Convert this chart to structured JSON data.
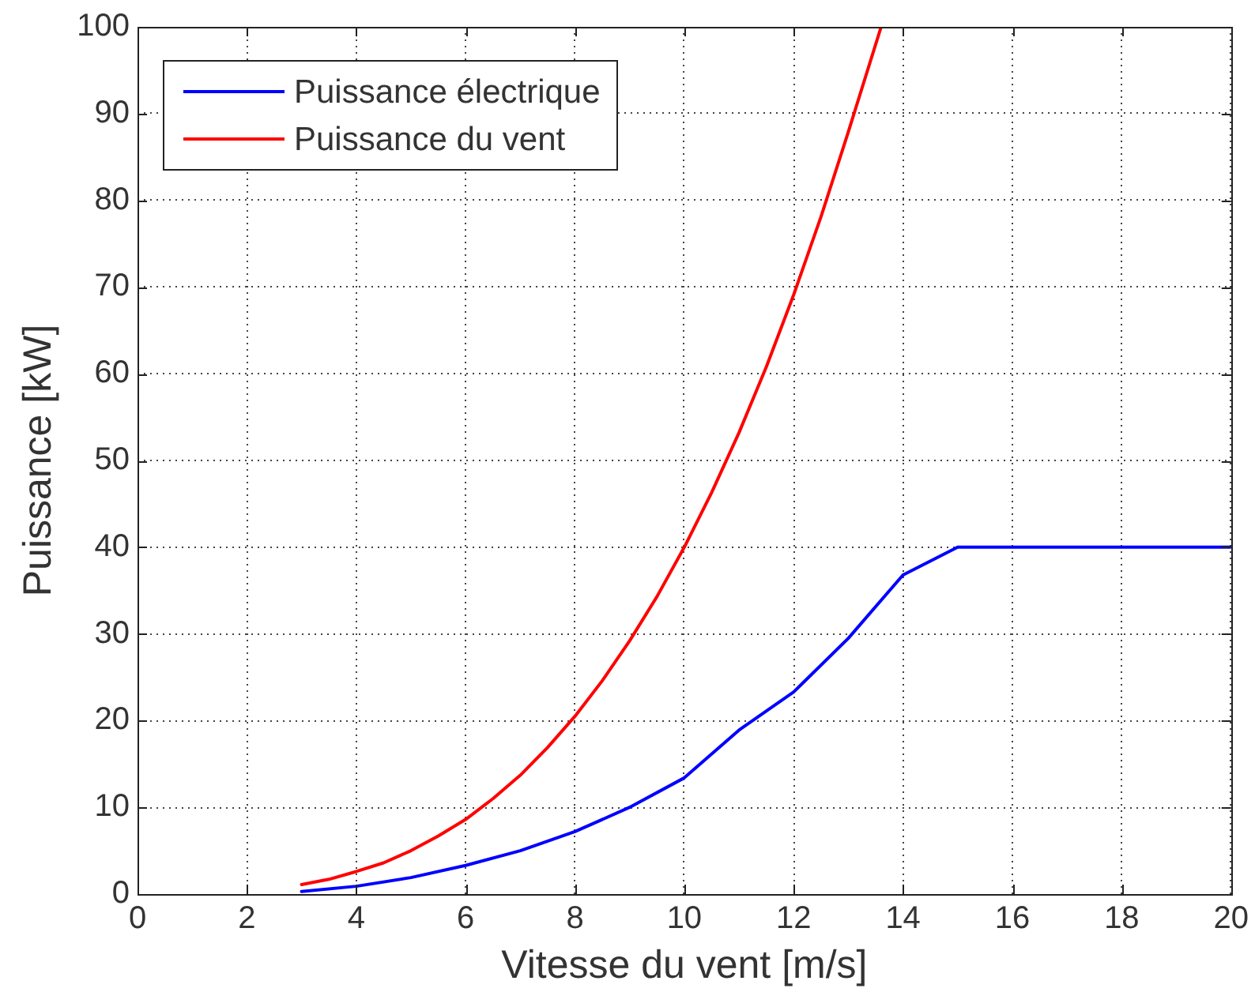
{
  "chart_data": {
    "type": "line",
    "xlabel": "Vitesse du vent [m/s]",
    "ylabel": "Puissance [kW]",
    "xlim": [
      0,
      20
    ],
    "ylim": [
      0,
      100
    ],
    "xticks": [
      0,
      2,
      4,
      6,
      8,
      10,
      12,
      14,
      16,
      18,
      20
    ],
    "yticks": [
      0,
      10,
      20,
      30,
      40,
      50,
      60,
      70,
      80,
      90,
      100
    ],
    "grid": true,
    "legend": "top left",
    "marker": "none",
    "line_style": "solid",
    "series": [
      {
        "name": "Puissance électrique",
        "color": "#0000ff",
        "x": [
          3,
          4,
          5,
          6,
          7,
          8,
          9,
          10,
          11,
          12,
          13,
          14,
          15,
          16,
          17,
          18,
          19,
          20
        ],
        "values": [
          0.3,
          0.9,
          1.9,
          3.3,
          5,
          7.2,
          10,
          13.4,
          18.9,
          23.3,
          29.5,
          36.8,
          40,
          40,
          40,
          40,
          40,
          40
        ]
      },
      {
        "name": "Puissance du vent",
        "color": "#ff0000",
        "x": [
          3,
          3.5,
          4,
          4.5,
          5,
          5.5,
          6,
          6.5,
          7,
          7.5,
          8,
          8.5,
          9,
          9.5,
          10,
          10.5,
          11,
          11.5,
          12,
          12.5,
          13,
          13.6
        ],
        "values": [
          1.1,
          1.7,
          2.6,
          3.6,
          5,
          6.7,
          8.6,
          11,
          13.7,
          16.9,
          20.5,
          24.6,
          29.2,
          34.3,
          40,
          46.3,
          53.2,
          60.8,
          69.1,
          78.1,
          87.9,
          100
        ]
      }
    ]
  }
}
